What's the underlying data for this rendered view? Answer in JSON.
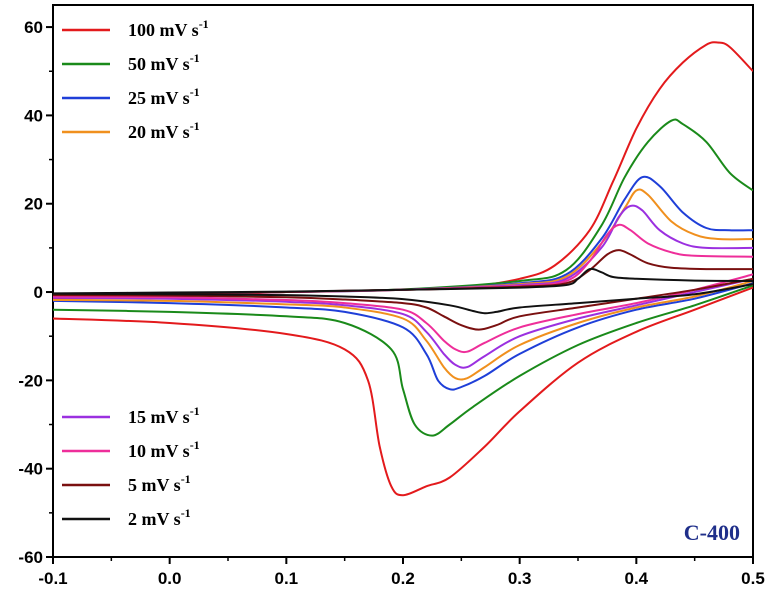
{
  "chart_data": {
    "type": "line",
    "title": "",
    "xlabel": "",
    "ylabel": "",
    "xlim": [
      -0.1,
      0.5
    ],
    "ylim": [
      -60,
      65
    ],
    "x_ticks": [
      "-0.1",
      "0.0",
      "0.1",
      "0.2",
      "0.3",
      "0.4",
      "0.5"
    ],
    "y_ticks": [
      "60",
      "40",
      "20",
      "0",
      "-20",
      "-40",
      "-60"
    ],
    "annotation": "C-400",
    "legend_groups": [
      {
        "placement": "top-left",
        "items": [
          0,
          1,
          2,
          3
        ]
      },
      {
        "placement": "bottom-left",
        "items": [
          4,
          5,
          6,
          7
        ]
      }
    ],
    "series": [
      {
        "name": "100 mV s",
        "name_sup": "-1",
        "color": "#e31a1c",
        "anodic": [
          [
            -0.1,
            -1.5
          ],
          [
            0.0,
            -1
          ],
          [
            0.1,
            0
          ],
          [
            0.2,
            0.5
          ],
          [
            0.25,
            1
          ],
          [
            0.3,
            3
          ],
          [
            0.33,
            6
          ],
          [
            0.36,
            14
          ],
          [
            0.38,
            25
          ],
          [
            0.4,
            37
          ],
          [
            0.42,
            46
          ],
          [
            0.44,
            52
          ],
          [
            0.46,
            56
          ],
          [
            0.47,
            56.5
          ],
          [
            0.48,
            55.5
          ],
          [
            0.5,
            50
          ]
        ],
        "cathodic": [
          [
            0.5,
            1
          ],
          [
            0.45,
            -4
          ],
          [
            0.4,
            -9
          ],
          [
            0.35,
            -16
          ],
          [
            0.3,
            -27
          ],
          [
            0.27,
            -35
          ],
          [
            0.24,
            -42
          ],
          [
            0.22,
            -44
          ],
          [
            0.2,
            -46
          ],
          [
            0.19,
            -44
          ],
          [
            0.18,
            -35
          ],
          [
            0.17,
            -20
          ],
          [
            0.15,
            -13
          ],
          [
            0.1,
            -9.5
          ],
          [
            0.0,
            -7
          ],
          [
            -0.1,
            -6
          ]
        ]
      },
      {
        "name": "50 mV s",
        "name_sup": "-1",
        "color": "#1a8a1a",
        "anodic": [
          [
            -0.1,
            -1
          ],
          [
            0.0,
            -0.5
          ],
          [
            0.1,
            0
          ],
          [
            0.2,
            0.6
          ],
          [
            0.3,
            2.5
          ],
          [
            0.34,
            5
          ],
          [
            0.37,
            15
          ],
          [
            0.39,
            26
          ],
          [
            0.41,
            34
          ],
          [
            0.43,
            38.8
          ],
          [
            0.44,
            38
          ],
          [
            0.46,
            34
          ],
          [
            0.48,
            27
          ],
          [
            0.5,
            23
          ]
        ],
        "cathodic": [
          [
            0.5,
            1.5
          ],
          [
            0.45,
            -3
          ],
          [
            0.4,
            -7
          ],
          [
            0.35,
            -12
          ],
          [
            0.3,
            -19
          ],
          [
            0.26,
            -26
          ],
          [
            0.24,
            -30
          ],
          [
            0.225,
            -32.5
          ],
          [
            0.21,
            -30
          ],
          [
            0.2,
            -22
          ],
          [
            0.19,
            -13
          ],
          [
            0.15,
            -7
          ],
          [
            0.1,
            -5.5
          ],
          [
            0.0,
            -4.5
          ],
          [
            -0.1,
            -4
          ]
        ]
      },
      {
        "name": "25 mV s",
        "name_sup": "-1",
        "color": "#1f3fd8",
        "anodic": [
          [
            -0.1,
            -0.8
          ],
          [
            0.0,
            -0.4
          ],
          [
            0.1,
            0
          ],
          [
            0.2,
            0.5
          ],
          [
            0.3,
            2
          ],
          [
            0.34,
            4
          ],
          [
            0.37,
            12
          ],
          [
            0.39,
            21
          ],
          [
            0.405,
            26
          ],
          [
            0.42,
            24
          ],
          [
            0.44,
            18
          ],
          [
            0.46,
            14.5
          ],
          [
            0.48,
            14
          ],
          [
            0.5,
            14
          ]
        ],
        "cathodic": [
          [
            0.5,
            2
          ],
          [
            0.45,
            -1.5
          ],
          [
            0.4,
            -4
          ],
          [
            0.35,
            -8
          ],
          [
            0.3,
            -14
          ],
          [
            0.27,
            -19
          ],
          [
            0.25,
            -21.5
          ],
          [
            0.24,
            -22
          ],
          [
            0.23,
            -20
          ],
          [
            0.22,
            -14
          ],
          [
            0.2,
            -8
          ],
          [
            0.15,
            -4.5
          ],
          [
            0.1,
            -3.5
          ],
          [
            0.0,
            -2.5
          ],
          [
            -0.1,
            -2
          ]
        ]
      },
      {
        "name": "20 mV s",
        "name_sup": "-1",
        "color": "#f0901e",
        "anodic": [
          [
            -0.1,
            -0.7
          ],
          [
            0.0,
            -0.3
          ],
          [
            0.1,
            0
          ],
          [
            0.2,
            0.5
          ],
          [
            0.3,
            1.8
          ],
          [
            0.34,
            3.5
          ],
          [
            0.37,
            11
          ],
          [
            0.39,
            19
          ],
          [
            0.4,
            23
          ],
          [
            0.41,
            22
          ],
          [
            0.43,
            16
          ],
          [
            0.45,
            13
          ],
          [
            0.47,
            12
          ],
          [
            0.5,
            12
          ]
        ],
        "cathodic": [
          [
            0.5,
            2.5
          ],
          [
            0.45,
            -1
          ],
          [
            0.4,
            -3.5
          ],
          [
            0.35,
            -7
          ],
          [
            0.3,
            -12
          ],
          [
            0.27,
            -17
          ],
          [
            0.255,
            -19.5
          ],
          [
            0.245,
            -19.5
          ],
          [
            0.235,
            -17
          ],
          [
            0.22,
            -11
          ],
          [
            0.2,
            -6
          ],
          [
            0.15,
            -3.5
          ],
          [
            0.1,
            -2.8
          ],
          [
            0.0,
            -2
          ],
          [
            -0.1,
            -1.8
          ]
        ]
      },
      {
        "name": "15 mV s",
        "name_sup": "-1",
        "color": "#9b30e0",
        "anodic": [
          [
            -0.1,
            -0.6
          ],
          [
            0.0,
            -0.3
          ],
          [
            0.1,
            0
          ],
          [
            0.2,
            0.5
          ],
          [
            0.3,
            1.6
          ],
          [
            0.34,
            3
          ],
          [
            0.37,
            10
          ],
          [
            0.385,
            17
          ],
          [
            0.395,
            19.5
          ],
          [
            0.405,
            18.5
          ],
          [
            0.42,
            14
          ],
          [
            0.44,
            11
          ],
          [
            0.46,
            10
          ],
          [
            0.5,
            10
          ]
        ],
        "cathodic": [
          [
            0.5,
            3
          ],
          [
            0.45,
            0
          ],
          [
            0.4,
            -3
          ],
          [
            0.35,
            -6
          ],
          [
            0.3,
            -10
          ],
          [
            0.27,
            -14.5
          ],
          [
            0.255,
            -17
          ],
          [
            0.245,
            -16.5
          ],
          [
            0.235,
            -14
          ],
          [
            0.22,
            -9
          ],
          [
            0.2,
            -5
          ],
          [
            0.15,
            -3
          ],
          [
            0.1,
            -2.2
          ],
          [
            0.0,
            -1.5
          ],
          [
            -0.1,
            -1.3
          ]
        ]
      },
      {
        "name": "10 mV s",
        "name_sup": "-1",
        "color": "#ee2e9a",
        "anodic": [
          [
            -0.1,
            -0.5
          ],
          [
            0.0,
            -0.2
          ],
          [
            0.1,
            0
          ],
          [
            0.2,
            0.5
          ],
          [
            0.3,
            1.4
          ],
          [
            0.34,
            2.5
          ],
          [
            0.36,
            7
          ],
          [
            0.375,
            13
          ],
          [
            0.385,
            15.2
          ],
          [
            0.395,
            14
          ],
          [
            0.41,
            11
          ],
          [
            0.43,
            9
          ],
          [
            0.45,
            8.2
          ],
          [
            0.5,
            8
          ]
        ],
        "cathodic": [
          [
            0.5,
            4
          ],
          [
            0.45,
            0.5
          ],
          [
            0.4,
            -2.5
          ],
          [
            0.35,
            -5
          ],
          [
            0.3,
            -8
          ],
          [
            0.27,
            -11.5
          ],
          [
            0.255,
            -13.5
          ],
          [
            0.245,
            -13
          ],
          [
            0.235,
            -11
          ],
          [
            0.22,
            -7
          ],
          [
            0.2,
            -4
          ],
          [
            0.15,
            -2.5
          ],
          [
            0.1,
            -1.8
          ],
          [
            0.0,
            -1.2
          ],
          [
            -0.1,
            -1
          ]
        ]
      },
      {
        "name": "5 mV s",
        "name_sup": "-1",
        "color": "#7a1010",
        "anodic": [
          [
            -0.1,
            -0.4
          ],
          [
            0.0,
            -0.2
          ],
          [
            0.1,
            0
          ],
          [
            0.2,
            0.5
          ],
          [
            0.3,
            1.2
          ],
          [
            0.34,
            2
          ],
          [
            0.36,
            5
          ],
          [
            0.375,
            8.5
          ],
          [
            0.385,
            9.5
          ],
          [
            0.395,
            8.5
          ],
          [
            0.41,
            6.5
          ],
          [
            0.43,
            5.5
          ],
          [
            0.46,
            5.2
          ],
          [
            0.5,
            5.2
          ]
        ],
        "cathodic": [
          [
            0.5,
            3
          ],
          [
            0.45,
            0.5
          ],
          [
            0.4,
            -1.5
          ],
          [
            0.35,
            -3.5
          ],
          [
            0.3,
            -5.5
          ],
          [
            0.28,
            -7.5
          ],
          [
            0.265,
            -8.5
          ],
          [
            0.25,
            -7.5
          ],
          [
            0.235,
            -5.5
          ],
          [
            0.22,
            -3.5
          ],
          [
            0.2,
            -2.5
          ],
          [
            0.15,
            -1.7
          ],
          [
            0.1,
            -1.2
          ],
          [
            0.0,
            -0.8
          ],
          [
            -0.1,
            -0.7
          ]
        ]
      },
      {
        "name": "2 mV s",
        "name_sup": "-1",
        "color": "#111111",
        "anodic": [
          [
            -0.1,
            -0.3
          ],
          [
            0.0,
            -0.1
          ],
          [
            0.1,
            0.1
          ],
          [
            0.2,
            0.5
          ],
          [
            0.3,
            1
          ],
          [
            0.34,
            1.6
          ],
          [
            0.35,
            3
          ],
          [
            0.36,
            5.2
          ],
          [
            0.37,
            4.5
          ],
          [
            0.38,
            3.4
          ],
          [
            0.4,
            3
          ],
          [
            0.45,
            2.6
          ],
          [
            0.5,
            2.5
          ]
        ],
        "cathodic": [
          [
            0.5,
            1.8
          ],
          [
            0.45,
            -0.5
          ],
          [
            0.4,
            -1.5
          ],
          [
            0.35,
            -2.5
          ],
          [
            0.3,
            -3.5
          ],
          [
            0.28,
            -4.5
          ],
          [
            0.27,
            -4.8
          ],
          [
            0.26,
            -4.3
          ],
          [
            0.24,
            -3
          ],
          [
            0.2,
            -1.6
          ],
          [
            0.15,
            -1
          ],
          [
            0.1,
            -0.7
          ],
          [
            0.0,
            -0.5
          ],
          [
            -0.1,
            -0.4
          ]
        ]
      }
    ]
  }
}
